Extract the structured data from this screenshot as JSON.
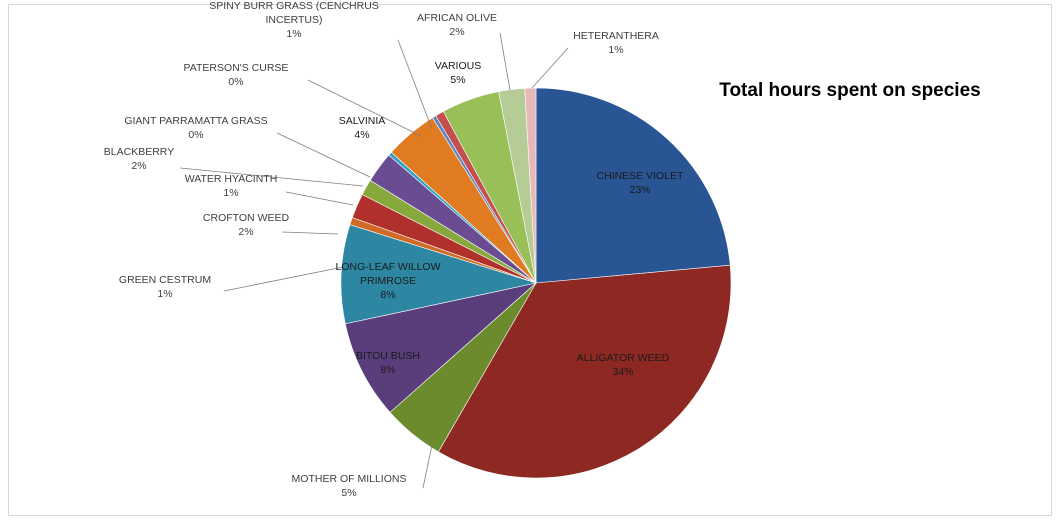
{
  "chart_data": {
    "type": "pie",
    "title": "Total hours spent on species",
    "slices": [
      {
        "label": "CHINESE VIOLET",
        "value": 23,
        "percent_label": "23%",
        "color": "#2a5595"
      },
      {
        "label": "ALLIGATOR WEED",
        "value": 34,
        "percent_label": "34%",
        "color": "#8e2823"
      },
      {
        "label": "MOTHER OF MILLIONS",
        "value": 5,
        "percent_label": "5%",
        "color": "#6b8b2c"
      },
      {
        "label": "BITOU BUSH",
        "value": 8,
        "percent_label": "8%",
        "color": "#5a3e7c"
      },
      {
        "label": "LONG-LEAF WILLOW PRIMROSE",
        "value": 8,
        "percent_label": "8%",
        "color": "#2d87a3"
      },
      {
        "label": "GREEN CESTRUM",
        "value": 0.6,
        "percent_label": "1%",
        "color": "#d06a24"
      },
      {
        "label": "CROFTON WEED",
        "value": 2,
        "percent_label": "2%",
        "color": "#b0302c"
      },
      {
        "label": "WATER HYACINTH",
        "value": 1.3,
        "percent_label": "1%",
        "color": "#86a83c"
      },
      {
        "label": "BLACKBERRY",
        "value": 2.5,
        "percent_label": "2%",
        "color": "#6a4c92"
      },
      {
        "label": "GIANT PARRAMATTA GRASS",
        "value": 0.3,
        "percent_label": "0%",
        "color": "#31a0c3"
      },
      {
        "label": "SALVINIA",
        "value": 4.3,
        "percent_label": "4%",
        "color": "#e07b21"
      },
      {
        "label": "PATERSON'S CURSE",
        "value": 0.3,
        "percent_label": "0%",
        "color": "#5b84c2"
      },
      {
        "label": "SPINY BURR GRASS (CENCHRUS INCERTUS)",
        "value": 0.7,
        "percent_label": "1%",
        "color": "#c3504d"
      },
      {
        "label": "VARIOUS",
        "value": 4.7,
        "percent_label": "5%",
        "color": "#99bf58"
      },
      {
        "label": "AFRICAN OLIVE",
        "value": 2.1,
        "percent_label": "2%",
        "color": "#b6cc96"
      },
      {
        "label": "HETERANTHERA",
        "value": 0.9,
        "percent_label": "1%",
        "color": "#e6b8b7"
      }
    ]
  }
}
